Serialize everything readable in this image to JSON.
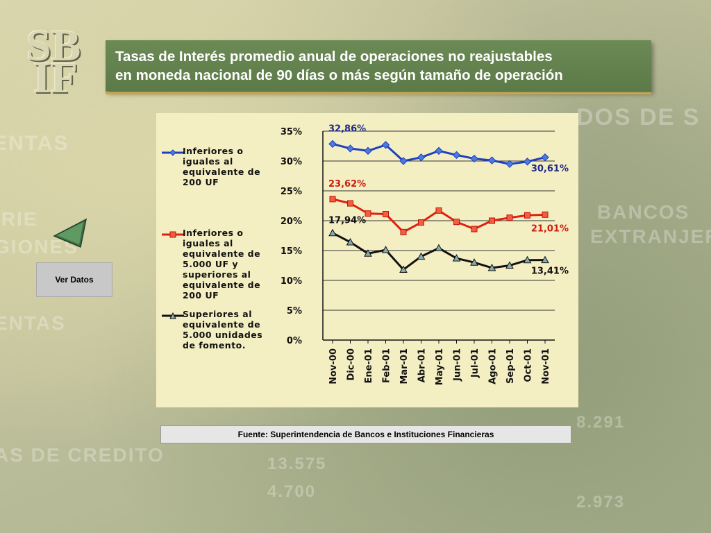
{
  "logo": {
    "line1": "SB",
    "line2": "IF"
  },
  "title": {
    "line1": "Tasas de Interés promedio anual de operaciones no reajustables",
    "line2": "en moneda nacional de 90 días o más según tamaño de operación"
  },
  "nav": {
    "back_icon": "left-arrow-icon",
    "ver_datos_label": "Ver Datos"
  },
  "source_label": "Fuente: Superintendencia de Bancos e Instituciones Financieras",
  "chart_data": {
    "type": "line",
    "categories": [
      "Nov-00",
      "Dic-00",
      "Ene-01",
      "Feb-01",
      "Mar-01",
      "Abr-01",
      "May-01",
      "Jun-01",
      "Jul-01",
      "Ago-01",
      "Sep-01",
      "Oct-01",
      "Nov-01"
    ],
    "ylim": [
      0,
      35
    ],
    "yticks": [
      "0%",
      "5%",
      "10%",
      "15%",
      "20%",
      "25%",
      "30%",
      "35%"
    ],
    "grid": true,
    "legend_position": "left",
    "series": [
      {
        "name": "Inferiores o iguales al equivalente de 200 UF",
        "color": "#1f3fbf",
        "marker": "diamond",
        "values": [
          32.86,
          32.1,
          31.7,
          32.7,
          30.0,
          30.6,
          31.7,
          31.0,
          30.4,
          30.1,
          29.5,
          29.9,
          30.61
        ],
        "labels": {
          "first": "32,86%",
          "last": "30,61%"
        },
        "label_color": "#1f2a8a"
      },
      {
        "name": "Inferiores o iguales al equivalente de 5.000 UF y superiores al equivalente de 200 UF",
        "color": "#e02010",
        "marker": "square",
        "values": [
          23.62,
          22.9,
          21.2,
          21.1,
          18.1,
          19.7,
          21.7,
          19.8,
          18.6,
          20.0,
          20.5,
          20.9,
          21.01
        ],
        "labels": {
          "first": "23,62%",
          "last": "21,01%"
        },
        "label_color": "#d01a10"
      },
      {
        "name": "Superiores al equivalente de 5.000 unidades de fomento.",
        "color": "#111111",
        "marker": "triangle",
        "values": [
          17.94,
          16.4,
          14.5,
          15.1,
          11.8,
          14.0,
          15.4,
          13.7,
          13.0,
          12.1,
          12.5,
          13.4,
          13.41
        ],
        "labels": {
          "first": "17,94%",
          "last": "13,41%"
        },
        "label_color": "#111111"
      }
    ]
  }
}
